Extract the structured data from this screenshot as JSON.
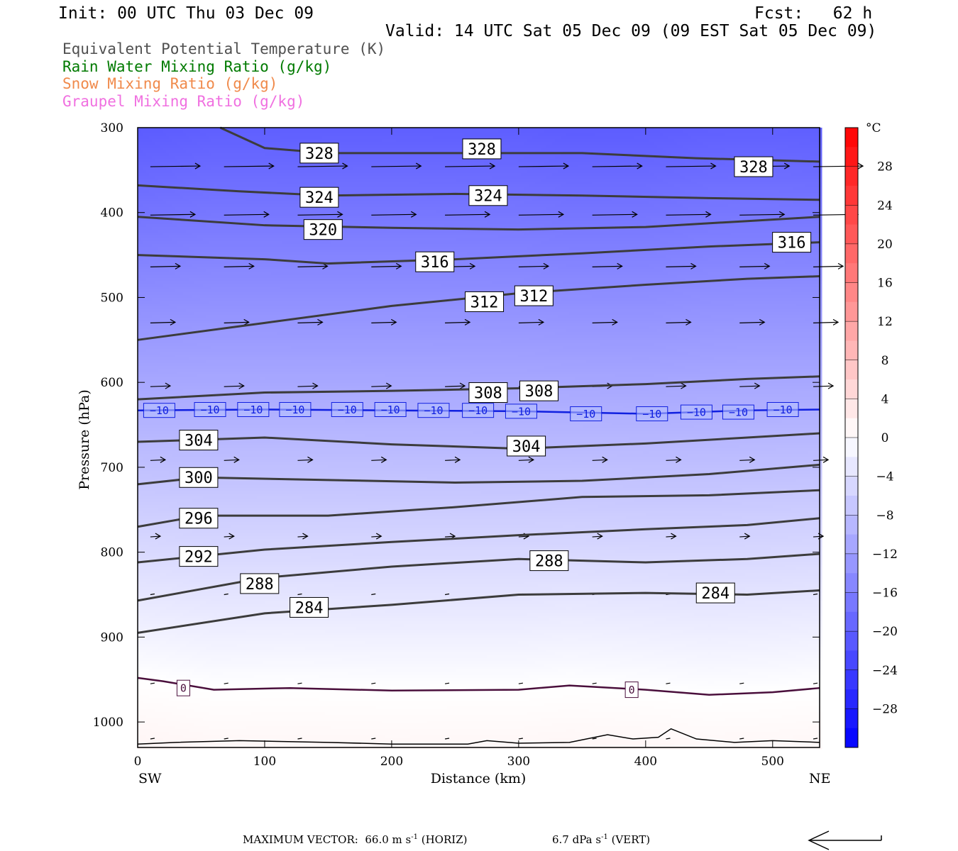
{
  "header": {
    "init": "Init: 00 UTC Thu 03 Dec 09",
    "fcst": "Fcst:   62 h",
    "valid": "Valid: 14 UTC Sat 05 Dec 09 (09 EST Sat 05 Dec 09)"
  },
  "legend": [
    {
      "label": "Equivalent Potential Temperature (K)",
      "color": "#505050"
    },
    {
      "label": "Rain Water Mixing Ratio (g/kg)",
      "color": "#007a00"
    },
    {
      "label": "Snow Mixing Ratio (g/kg)",
      "color": "#f08a4b"
    },
    {
      "label": "Graupel Mixing Ratio (g/kg)",
      "color": "#f070e0"
    }
  ],
  "footer": {
    "max_vector_label": "MAXIMUM VECTOR:  66.0 m s",
    "horiz_suffix": " (HORIZ)",
    "vert_label": "6.7 dPa s",
    "vert_suffix": " (VERT)",
    "sup": "-1"
  },
  "chart_data": {
    "type": "cross-section contour",
    "xlabel": "Distance (km)",
    "ylabel": "Pressure (hPa)",
    "x_ticks": [
      0,
      100,
      200,
      300,
      400,
      500
    ],
    "y_ticks": [
      300,
      400,
      500,
      600,
      700,
      800,
      900,
      1000
    ],
    "xlim": [
      0,
      537
    ],
    "ylim": [
      1030,
      300
    ],
    "left_endpoint": "SW",
    "right_endpoint": "NE",
    "colorbar": {
      "unit": "°C",
      "tick_labels": [
        "28",
        "24",
        "20",
        "16",
        "12",
        "8",
        "4",
        "0",
        "−4",
        "−8",
        "−12",
        "−16",
        "−20",
        "−24",
        "−28"
      ],
      "tick_values": [
        28,
        24,
        20,
        16,
        12,
        8,
        4,
        0,
        -4,
        -8,
        -12,
        -16,
        -20,
        -24,
        -28
      ],
      "range": [
        -32,
        32
      ],
      "cold_color": "#0000ff",
      "zero_color": "#ffffff",
      "warm_color": "#ff0000"
    },
    "theta_e_contours": [
      {
        "value": 328,
        "label": "328",
        "points": [
          [
            65,
            300
          ],
          [
            100,
            324
          ],
          [
            150,
            330
          ],
          [
            250,
            330
          ],
          [
            350,
            330
          ],
          [
            440,
            336
          ],
          [
            537,
            340
          ]
        ]
      },
      {
        "value": 324,
        "label": "324",
        "points": [
          [
            0,
            368
          ],
          [
            80,
            375
          ],
          [
            150,
            380
          ],
          [
            250,
            378
          ],
          [
            350,
            380
          ],
          [
            450,
            383
          ],
          [
            537,
            385
          ]
        ]
      },
      {
        "value": 320,
        "label": "320",
        "points": [
          [
            0,
            405
          ],
          [
            100,
            415
          ],
          [
            200,
            418
          ],
          [
            300,
            420
          ],
          [
            400,
            417
          ],
          [
            480,
            410
          ],
          [
            537,
            405
          ]
        ]
      },
      {
        "value": 316,
        "label": "316",
        "points": [
          [
            0,
            450
          ],
          [
            100,
            455
          ],
          [
            150,
            460
          ],
          [
            250,
            455
          ],
          [
            350,
            448
          ],
          [
            450,
            440
          ],
          [
            537,
            435
          ]
        ]
      },
      {
        "value": 312,
        "label": "312",
        "points": [
          [
            0,
            550
          ],
          [
            100,
            530
          ],
          [
            200,
            510
          ],
          [
            300,
            495
          ],
          [
            400,
            485
          ],
          [
            480,
            478
          ],
          [
            537,
            475
          ]
        ]
      },
      {
        "value": 308,
        "label": "308",
        "points": [
          [
            0,
            620
          ],
          [
            100,
            612
          ],
          [
            200,
            610
          ],
          [
            300,
            607
          ],
          [
            400,
            602
          ],
          [
            480,
            596
          ],
          [
            537,
            593
          ]
        ]
      },
      {
        "value": 304,
        "label": "304",
        "points": [
          [
            0,
            670
          ],
          [
            100,
            665
          ],
          [
            200,
            673
          ],
          [
            300,
            678
          ],
          [
            400,
            672
          ],
          [
            480,
            665
          ],
          [
            537,
            660
          ]
        ]
      },
      {
        "value": 300,
        "label": "300",
        "points": [
          [
            0,
            720
          ],
          [
            50,
            712
          ],
          [
            150,
            715
          ],
          [
            250,
            718
          ],
          [
            350,
            716
          ],
          [
            450,
            708
          ],
          [
            537,
            697
          ]
        ]
      },
      {
        "value": 296,
        "label": "296",
        "points": [
          [
            0,
            770
          ],
          [
            50,
            757
          ],
          [
            150,
            757
          ],
          [
            250,
            747
          ],
          [
            350,
            735
          ],
          [
            450,
            733
          ],
          [
            537,
            727
          ]
        ]
      },
      {
        "value": 292,
        "label": "292",
        "points": [
          [
            0,
            812
          ],
          [
            100,
            797
          ],
          [
            200,
            788
          ],
          [
            300,
            780
          ],
          [
            400,
            773
          ],
          [
            480,
            768
          ],
          [
            537,
            760
          ]
        ]
      },
      {
        "value": 288,
        "label": "288",
        "points": [
          [
            0,
            857
          ],
          [
            100,
            830
          ],
          [
            200,
            817
          ],
          [
            300,
            808
          ],
          [
            400,
            812
          ],
          [
            480,
            808
          ],
          [
            537,
            802
          ]
        ]
      },
      {
        "value": 284,
        "label": "284",
        "points": [
          [
            0,
            895
          ],
          [
            100,
            872
          ],
          [
            200,
            862
          ],
          [
            300,
            850
          ],
          [
            400,
            848
          ],
          [
            480,
            850
          ],
          [
            537,
            845
          ]
        ]
      }
    ],
    "temperature_contours": [
      {
        "value": -10,
        "label": "−10",
        "points": [
          [
            0,
            633
          ],
          [
            100,
            632
          ],
          [
            200,
            633
          ],
          [
            300,
            634
          ],
          [
            400,
            637
          ],
          [
            480,
            633
          ],
          [
            537,
            632
          ]
        ]
      },
      {
        "value": 0,
        "label": "0",
        "points": [
          [
            0,
            948
          ],
          [
            20,
            952
          ],
          [
            60,
            962
          ],
          [
            120,
            960
          ],
          [
            200,
            963
          ],
          [
            300,
            962
          ],
          [
            340,
            957
          ],
          [
            400,
            962
          ],
          [
            450,
            968
          ],
          [
            500,
            965
          ],
          [
            537,
            960
          ]
        ]
      }
    ],
    "theta_e_labels": [
      {
        "text": "328",
        "x": 143,
        "p": 330
      },
      {
        "text": "328",
        "x": 271,
        "p": 325
      },
      {
        "text": "328",
        "x": 485,
        "p": 346
      },
      {
        "text": "324",
        "x": 143,
        "p": 382
      },
      {
        "text": "324",
        "x": 276,
        "p": 380
      },
      {
        "text": "320",
        "x": 146,
        "p": 420
      },
      {
        "text": "316",
        "x": 234,
        "p": 458
      },
      {
        "text": "316",
        "x": 515,
        "p": 435
      },
      {
        "text": "312",
        "x": 273,
        "p": 505
      },
      {
        "text": "312",
        "x": 312,
        "p": 498
      },
      {
        "text": "308",
        "x": 276,
        "p": 612
      },
      {
        "text": "308",
        "x": 316,
        "p": 610
      },
      {
        "text": "304",
        "x": 48,
        "p": 668
      },
      {
        "text": "304",
        "x": 306,
        "p": 675
      },
      {
        "text": "300",
        "x": 48,
        "p": 712
      },
      {
        "text": "296",
        "x": 48,
        "p": 760
      },
      {
        "text": "292",
        "x": 48,
        "p": 805
      },
      {
        "text": "288",
        "x": 96,
        "p": 837
      },
      {
        "text": "288",
        "x": 324,
        "p": 810
      },
      {
        "text": "284",
        "x": 135,
        "p": 865
      },
      {
        "text": "284",
        "x": 455,
        "p": 848
      }
    ],
    "minus10_labels": [
      {
        "text": "−10",
        "x": 17,
        "p": 633
      },
      {
        "text": "−10",
        "x": 57,
        "p": 632
      },
      {
        "text": "−10",
        "x": 91,
        "p": 632
      },
      {
        "text": "−10",
        "x": 124,
        "p": 632
      },
      {
        "text": "−10",
        "x": 165,
        "p": 632
      },
      {
        "text": "−10",
        "x": 199,
        "p": 632
      },
      {
        "text": "−10",
        "x": 233,
        "p": 633
      },
      {
        "text": "−10",
        "x": 268,
        "p": 633
      },
      {
        "text": "−10",
        "x": 302,
        "p": 634
      },
      {
        "text": "−10",
        "x": 353,
        "p": 637
      },
      {
        "text": "−10",
        "x": 405,
        "p": 637
      },
      {
        "text": "−10",
        "x": 440,
        "p": 635
      },
      {
        "text": "−10",
        "x": 473,
        "p": 635
      },
      {
        "text": "−10",
        "x": 508,
        "p": 632
      }
    ],
    "zero_labels": [
      {
        "text": "0",
        "x": 36,
        "p": 960
      },
      {
        "text": "0",
        "x": 389,
        "p": 962
      }
    ],
    "wind_rows": [
      {
        "p": 346,
        "len": 1.0
      },
      {
        "p": 403,
        "len": 0.9
      },
      {
        "p": 464,
        "len": 0.6
      },
      {
        "p": 530,
        "len": 0.5
      },
      {
        "p": 605,
        "len": 0.4
      },
      {
        "p": 692,
        "len": 0.3
      },
      {
        "p": 782,
        "len": 0.2
      },
      {
        "p": 850,
        "len": 0.08
      },
      {
        "p": 955,
        "len": 0.06
      },
      {
        "p": 1020,
        "len": 0.04
      }
    ],
    "terrain": [
      [
        0,
        1026
      ],
      [
        30,
        1024
      ],
      [
        80,
        1022
      ],
      [
        150,
        1024
      ],
      [
        200,
        1026
      ],
      [
        260,
        1026
      ],
      [
        275,
        1022
      ],
      [
        300,
        1025
      ],
      [
        340,
        1024
      ],
      [
        370,
        1015
      ],
      [
        390,
        1020
      ],
      [
        410,
        1018
      ],
      [
        420,
        1008
      ],
      [
        440,
        1020
      ],
      [
        470,
        1024
      ],
      [
        500,
        1022
      ],
      [
        537,
        1024
      ]
    ]
  }
}
